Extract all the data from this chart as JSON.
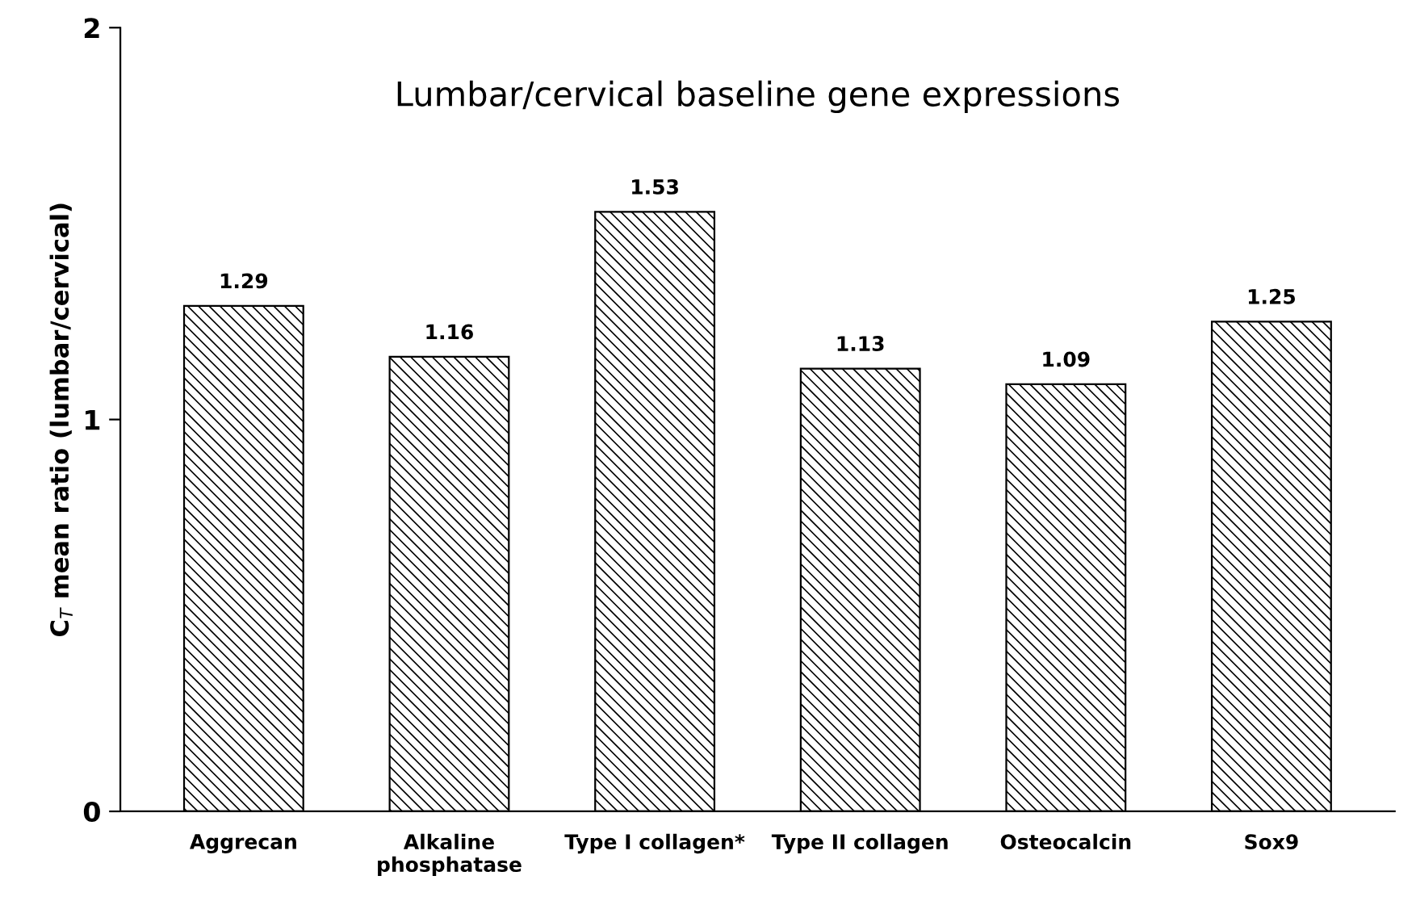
{
  "chart_data": {
    "type": "bar",
    "title": "Lumbar/cervical baseline gene expressions",
    "ylabel": "C$_{T}$ mean ratio (lumbar/cervical)",
    "categories": [
      "Aggrecan",
      "Alkaline\nphosphatase",
      "Type I collagen*",
      "Type II collagen",
      "Osteocalcin",
      "Sox9"
    ],
    "values": [
      1.29,
      1.16,
      1.53,
      1.13,
      1.09,
      1.25
    ],
    "color": "#000000",
    "ylim": [
      0,
      2
    ],
    "yticks": [
      0,
      1,
      2
    ],
    "data_labels": true,
    "grid": false,
    "legend": false
  }
}
